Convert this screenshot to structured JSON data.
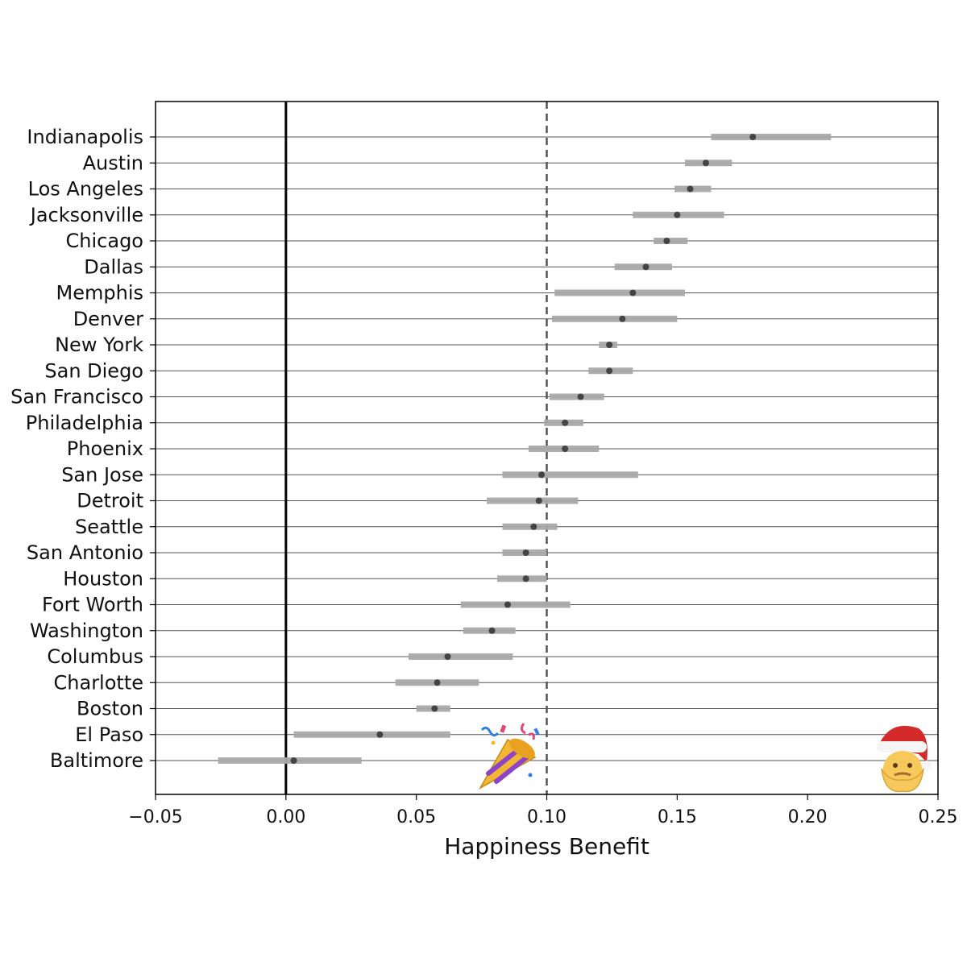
{
  "chart_data": {
    "type": "forest",
    "xlabel": "Happiness Benefit",
    "xlim": [
      -0.05,
      0.25
    ],
    "xticks": [
      -0.05,
      0.0,
      0.05,
      0.1,
      0.15,
      0.2,
      0.25
    ],
    "xtick_labels": [
      "−0.05",
      "0.00",
      "0.05",
      "0.10",
      "0.15",
      "0.20",
      "0.25"
    ],
    "zero_line": 0.0,
    "reference_line": 0.1,
    "rows": [
      {
        "city": "Indianapolis",
        "estimate": 0.179,
        "low": 0.163,
        "high": 0.209
      },
      {
        "city": "Austin",
        "estimate": 0.161,
        "low": 0.153,
        "high": 0.171
      },
      {
        "city": "Los Angeles",
        "estimate": 0.155,
        "low": 0.149,
        "high": 0.163
      },
      {
        "city": "Jacksonville",
        "estimate": 0.15,
        "low": 0.133,
        "high": 0.168
      },
      {
        "city": "Chicago",
        "estimate": 0.146,
        "low": 0.141,
        "high": 0.154
      },
      {
        "city": "Dallas",
        "estimate": 0.138,
        "low": 0.126,
        "high": 0.148
      },
      {
        "city": "Memphis",
        "estimate": 0.133,
        "low": 0.103,
        "high": 0.153
      },
      {
        "city": "Denver",
        "estimate": 0.129,
        "low": 0.102,
        "high": 0.15
      },
      {
        "city": "New York",
        "estimate": 0.124,
        "low": 0.12,
        "high": 0.127
      },
      {
        "city": "San Diego",
        "estimate": 0.124,
        "low": 0.116,
        "high": 0.133
      },
      {
        "city": "San Francisco",
        "estimate": 0.113,
        "low": 0.101,
        "high": 0.122
      },
      {
        "city": "Philadelphia",
        "estimate": 0.107,
        "low": 0.099,
        "high": 0.114
      },
      {
        "city": "Phoenix",
        "estimate": 0.107,
        "low": 0.093,
        "high": 0.12
      },
      {
        "city": "San Jose",
        "estimate": 0.098,
        "low": 0.083,
        "high": 0.135
      },
      {
        "city": "Detroit",
        "estimate": 0.097,
        "low": 0.077,
        "high": 0.112
      },
      {
        "city": "Seattle",
        "estimate": 0.095,
        "low": 0.083,
        "high": 0.104
      },
      {
        "city": "San Antonio",
        "estimate": 0.092,
        "low": 0.083,
        "high": 0.1
      },
      {
        "city": "Houston",
        "estimate": 0.092,
        "low": 0.081,
        "high": 0.1
      },
      {
        "city": "Fort Worth",
        "estimate": 0.085,
        "low": 0.067,
        "high": 0.109
      },
      {
        "city": "Washington",
        "estimate": 0.079,
        "low": 0.068,
        "high": 0.088
      },
      {
        "city": "Columbus",
        "estimate": 0.062,
        "low": 0.047,
        "high": 0.087
      },
      {
        "city": "Charlotte",
        "estimate": 0.058,
        "low": 0.042,
        "high": 0.074
      },
      {
        "city": "Boston",
        "estimate": 0.057,
        "low": 0.05,
        "high": 0.063
      },
      {
        "city": "El Paso",
        "estimate": 0.036,
        "low": 0.003,
        "high": 0.063
      },
      {
        "city": "Baltimore",
        "estimate": 0.003,
        "low": -0.026,
        "high": 0.029
      }
    ],
    "colors": {
      "interval": "#a9a9a9",
      "point": "#444444",
      "row_line": "#555555",
      "zero_line": "#000000",
      "reference_line": "#555555",
      "frame": "#000000"
    },
    "icons": {
      "party": "party-popper-icon",
      "santa": "santa-claus-icon"
    }
  }
}
